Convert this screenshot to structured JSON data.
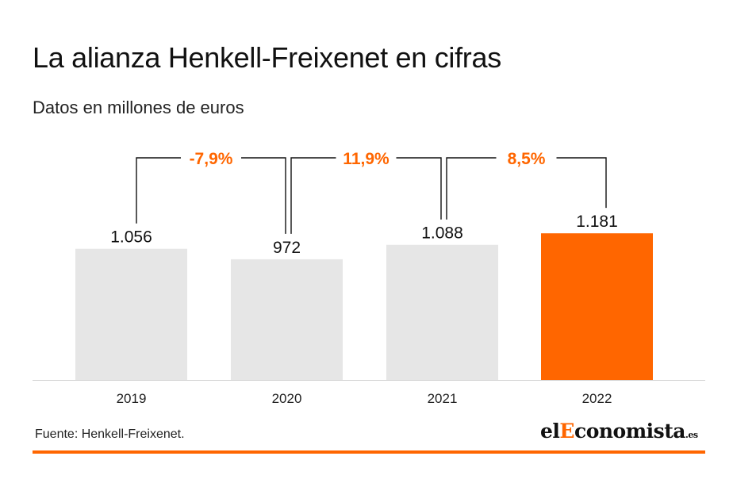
{
  "title": "La alianza Henkell-Freixenet en cifras",
  "subtitle": "Datos en millones de euros",
  "source": "Fuente: Henkell-Freixenet.",
  "logo": {
    "part1": "el",
    "part2": "E",
    "part3": "conomista",
    "tld": ".es"
  },
  "colors": {
    "bar": "#e6e6e6",
    "highlight": "#ff6600",
    "text": "#111111",
    "connector": "#111111"
  },
  "chart_data": {
    "type": "bar",
    "categories": [
      "2019",
      "2020",
      "2021",
      "2022"
    ],
    "values": [
      1056,
      972,
      1088,
      1181
    ],
    "value_labels": [
      "1.056",
      "972",
      "1.088",
      "1.181"
    ],
    "highlight_index": 3,
    "changes": [
      {
        "from": "2019",
        "to": "2020",
        "label": "-7,9%"
      },
      {
        "from": "2020",
        "to": "2021",
        "label": "11,9%"
      },
      {
        "from": "2021",
        "to": "2022",
        "label": "8,5%"
      }
    ],
    "grid": false
  }
}
